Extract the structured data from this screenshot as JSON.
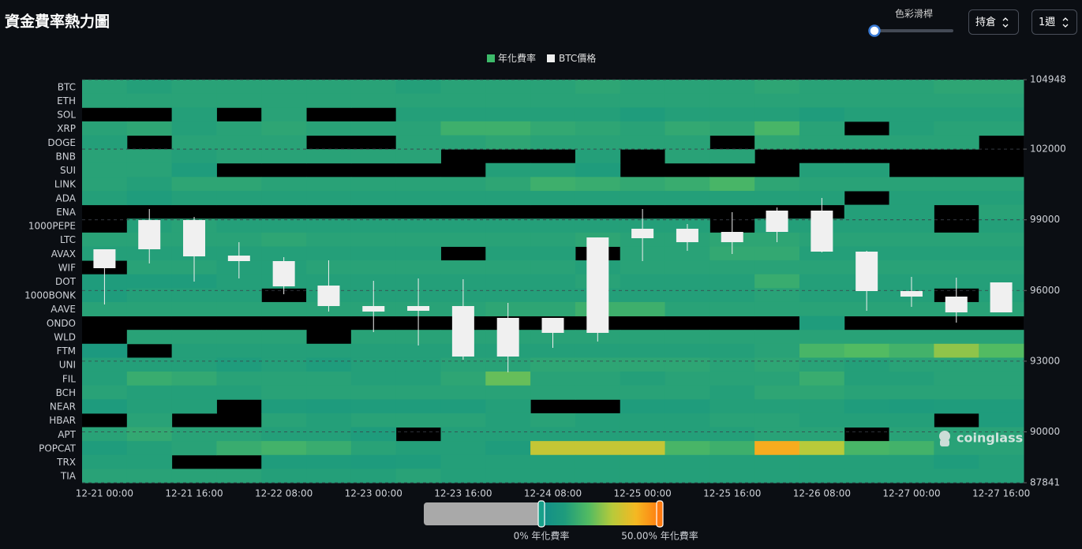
{
  "chart_data": {
    "type": "heatmap",
    "title": "資金費率熱力圖",
    "x": [
      "12-21 00:00",
      null,
      "12-21 16:00",
      null,
      "12-22 08:00",
      null,
      "12-23 00:00",
      null,
      "12-23 16:00",
      null,
      "12-24 08:00",
      null,
      "12-25 00:00",
      null,
      "12-25 16:00",
      null,
      "12-26 08:00",
      null,
      "12-27 00:00",
      null,
      "12-27 16:00"
    ],
    "rows": [
      "BTC",
      "ETH",
      "SOL",
      "XRP",
      "DOGE",
      "BNB",
      "SUI",
      "LINK",
      "ADA",
      "ENA",
      "1000PEPE",
      "LTC",
      "AVAX",
      "WIF",
      "DOT",
      "1000BONK",
      "AAVE",
      "ONDO",
      "WLD",
      "FTM",
      "UNI",
      "FIL",
      "BCH",
      "NEAR",
      "HBAR",
      "APT",
      "POPCAT",
      "TRX",
      "TIA"
    ],
    "heat_series": {
      "name": "年化費率",
      "color": "#3dba6a"
    },
    "values": [
      [
        12,
        11,
        12,
        12,
        12,
        12,
        12,
        11,
        12,
        12,
        12,
        13,
        12,
        12,
        12,
        13,
        12,
        12,
        12,
        13,
        13
      ],
      [
        12,
        12,
        12,
        12,
        12,
        12,
        12,
        12,
        12,
        12,
        12,
        12,
        12,
        12,
        12,
        12,
        12,
        12,
        12,
        12,
        12
      ],
      [
        null,
        null,
        11,
        null,
        12,
        null,
        null,
        11,
        11,
        11,
        11,
        11,
        10,
        11,
        11,
        11,
        10,
        11,
        11,
        11,
        11
      ],
      [
        12,
        13,
        11,
        12,
        13,
        12,
        12,
        12,
        16,
        16,
        14,
        13,
        12,
        14,
        13,
        18,
        12,
        null,
        11,
        12,
        12
      ],
      [
        11,
        null,
        12,
        12,
        12,
        null,
        null,
        12,
        12,
        13,
        12,
        12,
        12,
        12,
        null,
        13,
        12,
        12,
        12,
        12,
        null
      ],
      [
        12,
        12,
        11,
        12,
        12,
        12,
        12,
        12,
        null,
        null,
        null,
        11,
        null,
        12,
        12,
        null,
        null,
        null,
        null,
        null,
        null
      ],
      [
        12,
        12,
        10,
        null,
        null,
        null,
        null,
        null,
        null,
        11,
        11,
        10,
        null,
        null,
        null,
        null,
        11,
        11,
        null,
        null,
        null
      ],
      [
        12,
        11,
        13,
        13,
        12,
        12,
        12,
        12,
        12,
        13,
        16,
        15,
        14,
        15,
        18,
        13,
        12,
        12,
        12,
        12,
        12
      ],
      [
        11,
        10,
        11,
        11,
        11,
        11,
        11,
        11,
        11,
        11,
        11,
        11,
        11,
        11,
        11,
        11,
        11,
        null,
        11,
        11,
        11
      ],
      [
        null,
        null,
        null,
        null,
        null,
        null,
        null,
        null,
        null,
        null,
        null,
        null,
        null,
        null,
        null,
        null,
        null,
        11,
        11,
        null,
        12
      ],
      [
        null,
        11,
        12,
        11,
        11,
        11,
        11,
        11,
        11,
        11,
        11,
        11,
        11,
        11,
        null,
        11,
        11,
        11,
        11,
        null,
        11
      ],
      [
        12,
        12,
        12,
        12,
        13,
        12,
        12,
        12,
        12,
        12,
        12,
        13,
        12,
        12,
        13,
        13,
        12,
        12,
        12,
        12,
        12
      ],
      [
        11,
        11,
        11,
        11,
        11,
        11,
        11,
        11,
        null,
        11,
        11,
        null,
        12,
        12,
        14,
        14,
        11,
        11,
        11,
        11,
        11
      ],
      [
        null,
        12,
        12,
        11,
        11,
        12,
        12,
        12,
        12,
        12,
        12,
        11,
        12,
        12,
        12,
        12,
        12,
        12,
        12,
        12,
        12
      ],
      [
        10,
        10,
        10,
        11,
        11,
        11,
        11,
        11,
        11,
        11,
        11,
        12,
        11,
        11,
        11,
        15,
        11,
        11,
        11,
        11,
        11
      ],
      [
        10,
        11,
        11,
        11,
        null,
        11,
        11,
        11,
        11,
        11,
        11,
        11,
        11,
        11,
        11,
        12,
        11,
        11,
        11,
        null,
        11
      ],
      [
        12,
        12,
        12,
        12,
        12,
        12,
        12,
        12,
        12,
        13,
        13,
        16,
        16,
        12,
        12,
        12,
        12,
        12,
        12,
        12,
        12
      ],
      [
        null,
        null,
        null,
        null,
        null,
        null,
        null,
        null,
        null,
        null,
        null,
        null,
        null,
        null,
        null,
        null,
        10,
        null,
        null,
        null,
        null
      ],
      [
        null,
        12,
        12,
        12,
        12,
        null,
        12,
        12,
        12,
        12,
        12,
        12,
        12,
        12,
        12,
        12,
        12,
        12,
        12,
        12,
        12
      ],
      [
        8,
        null,
        11,
        11,
        11,
        11,
        11,
        11,
        11,
        11,
        11,
        11,
        11,
        11,
        11,
        12,
        18,
        20,
        17,
        26,
        20
      ],
      [
        11,
        11,
        11,
        10,
        11,
        10,
        11,
        11,
        12,
        12,
        13,
        13,
        13,
        13,
        12,
        13,
        12,
        11,
        12,
        12,
        12
      ],
      [
        11,
        15,
        14,
        12,
        12,
        12,
        11,
        11,
        13,
        22,
        12,
        12,
        11,
        12,
        12,
        12,
        15,
        11,
        11,
        12,
        12
      ],
      [
        12,
        11,
        11,
        11,
        12,
        12,
        12,
        12,
        12,
        12,
        12,
        12,
        12,
        12,
        11,
        13,
        13,
        12,
        12,
        12,
        12
      ],
      [
        9,
        11,
        11,
        null,
        10,
        9,
        10,
        10,
        10,
        11,
        null,
        null,
        10,
        10,
        11,
        11,
        11,
        10,
        9,
        10,
        10
      ],
      [
        null,
        12,
        null,
        null,
        12,
        11,
        12,
        12,
        12,
        11,
        12,
        11,
        11,
        11,
        12,
        12,
        11,
        11,
        11,
        null,
        10
      ],
      [
        12,
        14,
        12,
        12,
        11,
        11,
        10,
        null,
        11,
        11,
        11,
        11,
        11,
        11,
        11,
        12,
        12,
        null,
        12,
        12,
        12
      ],
      [
        10,
        11,
        12,
        15,
        17,
        15,
        12,
        11,
        11,
        10,
        32,
        32,
        32,
        18,
        16,
        42,
        30,
        18,
        17,
        12,
        12
      ],
      [
        11,
        11,
        null,
        null,
        10,
        10,
        9,
        10,
        11,
        11,
        11,
        11,
        11,
        11,
        11,
        11,
        11,
        11,
        11,
        10,
        11
      ],
      [
        12,
        12,
        12,
        12,
        11,
        11,
        11,
        12,
        11,
        11,
        11,
        11,
        11,
        11,
        11,
        11,
        11,
        11,
        11,
        11,
        11
      ]
    ],
    "colorlim": [
      0,
      50
    ],
    "colorscale": [
      "#118e8a",
      "#1f9c7c",
      "#52bb62",
      "#b8ca3a",
      "#f5b822",
      "#ff7a10"
    ],
    "colorticks": [
      {
        "value": 0,
        "label": "0% 年化費率"
      },
      {
        "value": 50,
        "label": "50.00% 年化費率"
      }
    ],
    "candles": {
      "name": "BTC價格",
      "color": "#f0f0f0",
      "axis": "y2",
      "open": [
        96947,
        97750,
        98989,
        97482,
        97248,
        96210,
        95340,
        95139,
        95340,
        93197,
        94838,
        94202,
        98219,
        98621,
        98051,
        98487,
        99391,
        97650,
        95976,
        95742,
        95072
      ],
      "high": [
        97750,
        99458,
        99123,
        98051,
        97415,
        97282,
        96411,
        96512,
        96478,
        95474,
        94838,
        98252,
        99458,
        98821,
        99324,
        99524,
        99926,
        97683,
        96578,
        96545,
        96344
      ],
      "low": [
        95407,
        97148,
        96378,
        96512,
        95842,
        95106,
        94235,
        93666,
        93063,
        92528,
        93566,
        93833,
        97248,
        97683,
        97549,
        98051,
        97616,
        95139,
        95306,
        94637,
        95072
      ],
      "close": [
        97750,
        98989,
        97449,
        97248,
        96177,
        95340,
        95106,
        95340,
        93197,
        94838,
        94202,
        98252,
        98621,
        98051,
        98487,
        99391,
        97650,
        95976,
        95742,
        95072,
        96344
      ]
    },
    "y2lim": [
      87841,
      104948
    ],
    "y2ticks": [
      87841,
      90000,
      93000,
      96000,
      99000,
      102000,
      104948
    ],
    "grid": true
  },
  "controls": {
    "slider_label": "色彩滑桿",
    "position_select": "持倉",
    "period_select": "1週"
  },
  "watermark": "coinglass"
}
